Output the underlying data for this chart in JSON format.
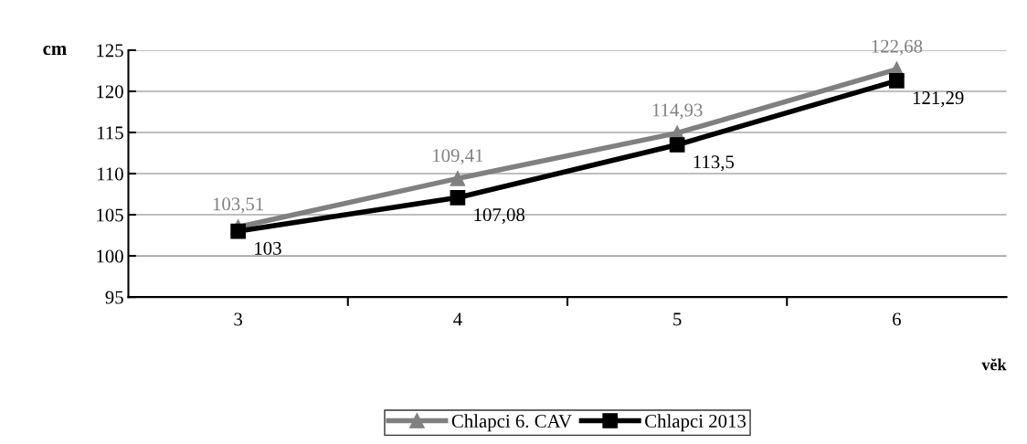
{
  "chart_data": {
    "type": "line",
    "ylabel": "cm",
    "xlabel": "věk",
    "categories": [
      "3",
      "4",
      "5",
      "6"
    ],
    "series": [
      {
        "name": "Chlapci 6. CAV",
        "color": "#808080",
        "marker": "triangle",
        "values": [
          103.51,
          109.41,
          114.93,
          122.68
        ],
        "value_labels": [
          "103,51",
          "109,41",
          "114,93",
          "122,68"
        ]
      },
      {
        "name": "Chlapci 2013",
        "color": "#000000",
        "marker": "square",
        "values": [
          103,
          107.08,
          113.5,
          121.29
        ],
        "value_labels": [
          "103",
          "107,08",
          "113,5",
          "121,29"
        ]
      }
    ],
    "ylim": [
      95,
      125
    ],
    "yticks": [
      95,
      100,
      105,
      110,
      115,
      120,
      125
    ],
    "grid": "y",
    "legend": "bottom"
  }
}
